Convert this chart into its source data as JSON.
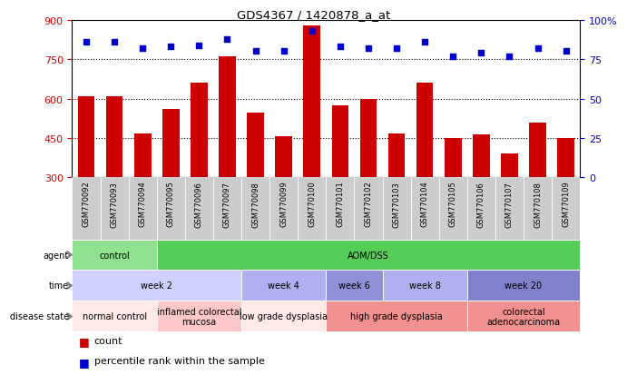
{
  "title": "GDS4367 / 1420878_a_at",
  "samples": [
    "GSM770092",
    "GSM770093",
    "GSM770094",
    "GSM770095",
    "GSM770096",
    "GSM770097",
    "GSM770098",
    "GSM770099",
    "GSM770100",
    "GSM770101",
    "GSM770102",
    "GSM770103",
    "GSM770104",
    "GSM770105",
    "GSM770106",
    "GSM770107",
    "GSM770108",
    "GSM770109"
  ],
  "counts": [
    610,
    608,
    468,
    560,
    660,
    760,
    545,
    455,
    880,
    575,
    600,
    468,
    660,
    448,
    465,
    390,
    510,
    448
  ],
  "percentiles": [
    86,
    86,
    82,
    83,
    84,
    88,
    80,
    80,
    93,
    83,
    82,
    82,
    86,
    77,
    79,
    77,
    82,
    80
  ],
  "ymin": 300,
  "ymax": 900,
  "yticks": [
    300,
    450,
    600,
    750,
    900
  ],
  "y2ticks": [
    0,
    25,
    50,
    75,
    100
  ],
  "bar_color": "#cc0000",
  "dot_color": "#0000cc",
  "agent_row": {
    "label": "agent",
    "segments": [
      {
        "text": "control",
        "start": 0,
        "end": 3,
        "color": "#90e090"
      },
      {
        "text": "AOM/DSS",
        "start": 3,
        "end": 18,
        "color": "#55cc55"
      }
    ]
  },
  "time_row": {
    "label": "time",
    "segments": [
      {
        "text": "week 2",
        "start": 0,
        "end": 6,
        "color": "#d0d0ff"
      },
      {
        "text": "week 4",
        "start": 6,
        "end": 9,
        "color": "#b0b0f0"
      },
      {
        "text": "week 6",
        "start": 9,
        "end": 11,
        "color": "#9090d8"
      },
      {
        "text": "week 8",
        "start": 11,
        "end": 14,
        "color": "#b0b0f0"
      },
      {
        "text": "week 20",
        "start": 14,
        "end": 18,
        "color": "#8080cc"
      }
    ]
  },
  "disease_row": {
    "label": "disease state",
    "segments": [
      {
        "text": "normal control",
        "start": 0,
        "end": 3,
        "color": "#ffe8e8"
      },
      {
        "text": "inflamed colorectal\nmucosa",
        "start": 3,
        "end": 6,
        "color": "#ffc8c8"
      },
      {
        "text": "low grade dysplasia",
        "start": 6,
        "end": 9,
        "color": "#ffe8e8"
      },
      {
        "text": "high grade dysplasia",
        "start": 9,
        "end": 14,
        "color": "#f09090"
      },
      {
        "text": "colorectal\nadenocarcinoma",
        "start": 14,
        "end": 18,
        "color": "#f09090"
      }
    ]
  },
  "figsize": [
    6.91,
    4.14
  ],
  "dpi": 100
}
